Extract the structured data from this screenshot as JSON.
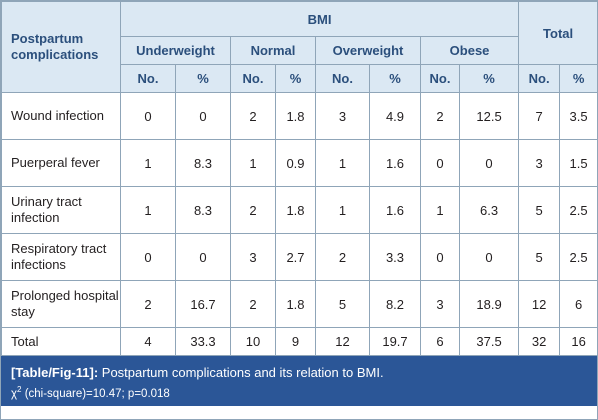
{
  "table": {
    "stub_header": "Postpartum complications",
    "group_header": "BMI",
    "bmi_groups": [
      "Underweight",
      "Normal",
      "Overweight",
      "Obese"
    ],
    "total_header": "Total",
    "no_label": "No.",
    "pct_label": "%",
    "rows": [
      {
        "label": "Wound infection",
        "cells": [
          "0",
          "0",
          "2",
          "1.8",
          "3",
          "4.9",
          "2",
          "12.5",
          "7",
          "3.5"
        ]
      },
      {
        "label": "Puerperal fever",
        "cells": [
          "1",
          "8.3",
          "1",
          "0.9",
          "1",
          "1.6",
          "0",
          "0",
          "3",
          "1.5"
        ]
      },
      {
        "label": "Urinary tract infection",
        "cells": [
          "1",
          "8.3",
          "2",
          "1.8",
          "1",
          "1.6",
          "1",
          "6.3",
          "5",
          "2.5"
        ]
      },
      {
        "label": "Respiratory tract infections",
        "cells": [
          "0",
          "0",
          "3",
          "2.7",
          "2",
          "3.3",
          "0",
          "0",
          "5",
          "2.5"
        ]
      },
      {
        "label": "Prolonged hospital stay",
        "cells": [
          "2",
          "16.7",
          "2",
          "1.8",
          "5",
          "8.2",
          "3",
          "18.9",
          "12",
          "6"
        ]
      },
      {
        "label": "Total",
        "cells": [
          "4",
          "33.3",
          "10",
          "9",
          "12",
          "19.7",
          "6",
          "37.5",
          "32",
          "16"
        ]
      }
    ]
  },
  "caption": {
    "label": "[Table/Fig-11]:",
    "text": " Postpartum complications and its relation to BMI.",
    "stat_symbol": "χ",
    "stat_sup": "2",
    "stat_text": " (chi-square)=10.47; p=0.018"
  },
  "colors": {
    "header_bg": "#dbe8f3",
    "header_text": "#2b4f7c",
    "border": "#8fa5b8",
    "caption_bg": "#2b5697"
  }
}
